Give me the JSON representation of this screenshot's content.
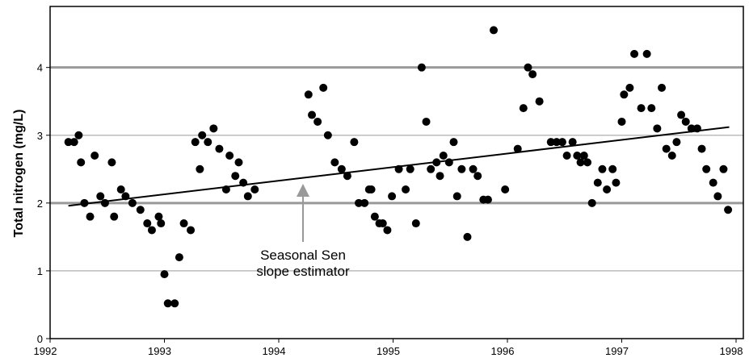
{
  "chart_data": {
    "type": "scatter",
    "y_label": "Total nitrogen (mg/L)",
    "annotation": [
      "Seasonal Sen",
      "slope estimator"
    ],
    "xlim": [
      1992,
      1998
    ],
    "xticks": [
      1992,
      1993,
      1994,
      1995,
      1996,
      1997,
      1998
    ],
    "ylim": [
      0,
      4.9
    ],
    "yticks": [
      0,
      1,
      2,
      3,
      4
    ],
    "grid": true,
    "series": [
      {
        "color": "#000000",
        "x": [
          1992.16,
          1992.21,
          1992.25,
          1992.27,
          1992.3,
          1992.35,
          1992.39,
          1992.44,
          1992.48,
          1992.54,
          1992.56,
          1992.62,
          1992.66,
          1992.72,
          1992.79,
          1992.85,
          1992.89,
          1992.95,
          1992.97,
          1993.0,
          1993.03,
          1993.09,
          1993.13,
          1993.17,
          1993.23,
          1993.27,
          1993.31,
          1993.33,
          1993.38,
          1993.43,
          1993.48,
          1993.54,
          1993.57,
          1993.62,
          1993.65,
          1993.69,
          1993.73,
          1993.79,
          1994.26,
          1994.29,
          1994.34,
          1994.39,
          1994.43,
          1994.49,
          1994.55,
          1994.6,
          1994.66,
          1994.7,
          1994.75,
          1994.79,
          1994.81,
          1994.84,
          1994.88,
          1994.91,
          1994.95,
          1994.99,
          1995.05,
          1995.11,
          1995.15,
          1995.2,
          1995.25,
          1995.29,
          1995.33,
          1995.38,
          1995.41,
          1995.44,
          1995.49,
          1995.53,
          1995.56,
          1995.6,
          1995.65,
          1995.7,
          1995.74,
          1995.79,
          1995.83,
          1995.88,
          1995.98,
          1996.09,
          1996.14,
          1996.18,
          1996.22,
          1996.28,
          1996.38,
          1996.43,
          1996.48,
          1996.52,
          1996.57,
          1996.61,
          1996.64,
          1996.67,
          1996.7,
          1996.74,
          1996.79,
          1996.83,
          1996.87,
          1996.92,
          1996.95,
          1997.0,
          1997.02,
          1997.07,
          1997.11,
          1997.17,
          1997.22,
          1997.26,
          1997.31,
          1997.35,
          1997.39,
          1997.44,
          1997.48,
          1997.52,
          1997.56,
          1997.61,
          1997.66,
          1997.7,
          1997.74,
          1997.8,
          1997.84,
          1997.89,
          1997.93
        ],
        "values": [
          2.9,
          2.9,
          3.0,
          2.6,
          2.0,
          1.8,
          2.7,
          2.1,
          2.0,
          2.6,
          1.8,
          2.2,
          2.1,
          2.0,
          1.9,
          1.7,
          1.6,
          1.8,
          1.7,
          0.95,
          0.52,
          0.52,
          1.2,
          1.7,
          1.6,
          2.9,
          2.5,
          3.0,
          2.9,
          3.1,
          2.8,
          2.2,
          2.7,
          2.4,
          2.6,
          2.3,
          2.1,
          2.2,
          3.6,
          3.3,
          3.2,
          3.7,
          3.0,
          2.6,
          2.5,
          2.4,
          2.9,
          2.0,
          2.0,
          2.2,
          2.2,
          1.8,
          1.7,
          1.7,
          1.6,
          2.1,
          2.5,
          2.2,
          2.5,
          1.7,
          4.0,
          3.2,
          2.5,
          2.6,
          2.4,
          2.7,
          2.6,
          2.9,
          2.1,
          2.5,
          1.5,
          2.5,
          2.4,
          2.05,
          2.05,
          4.55,
          2.2,
          2.8,
          3.4,
          4.0,
          3.9,
          3.5,
          2.9,
          2.9,
          2.9,
          2.7,
          2.9,
          2.7,
          2.6,
          2.7,
          2.6,
          2.0,
          2.3,
          2.5,
          2.2,
          2.5,
          2.3,
          3.2,
          3.6,
          3.7,
          4.2,
          3.4,
          4.2,
          3.4,
          3.1,
          3.7,
          2.8,
          2.7,
          2.9,
          3.3,
          3.2,
          3.1,
          3.1,
          2.8,
          2.5,
          2.3,
          2.1,
          2.5,
          1.9
        ]
      }
    ],
    "trend": {
      "x": [
        1992.16,
        1997.94
      ],
      "values": [
        1.96,
        3.12
      ]
    }
  }
}
